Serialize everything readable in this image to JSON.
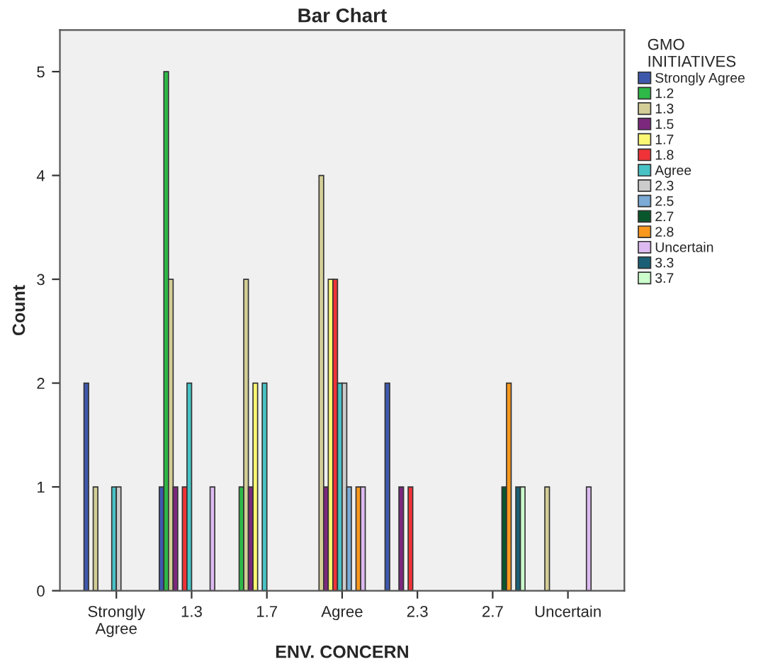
{
  "chart_data": {
    "type": "bar",
    "title": "Bar Chart",
    "xlabel": "ENV. CONCERN",
    "ylabel": "Count",
    "legend_title": "GMO INITIATIVES",
    "categories": [
      "Strongly Agree",
      "1.3",
      "1.7",
      "Agree",
      "2.3",
      "2.7",
      "Uncertain"
    ],
    "series": [
      {
        "name": "Strongly Agree",
        "color": "#3e58ac",
        "values": [
          2,
          1,
          null,
          null,
          2,
          null,
          null
        ]
      },
      {
        "name": "1.2",
        "color": "#2eb848",
        "values": [
          null,
          5,
          1,
          null,
          null,
          null,
          null
        ]
      },
      {
        "name": "1.3",
        "color": "#d3ce97",
        "values": [
          1,
          3,
          3,
          4,
          null,
          null,
          1
        ]
      },
      {
        "name": "1.5",
        "color": "#7c287d",
        "values": [
          null,
          1,
          1,
          1,
          1,
          null,
          null
        ]
      },
      {
        "name": "1.7",
        "color": "#fbf873",
        "values": [
          null,
          null,
          2,
          3,
          null,
          null,
          null
        ]
      },
      {
        "name": "1.8",
        "color": "#ef3338",
        "values": [
          null,
          1,
          null,
          3,
          1,
          null,
          null
        ]
      },
      {
        "name": "Agree",
        "color": "#48c2c5",
        "values": [
          1,
          2,
          2,
          2,
          null,
          null,
          null
        ]
      },
      {
        "name": "2.3",
        "color": "#cccccc",
        "values": [
          1,
          null,
          null,
          2,
          null,
          null,
          null
        ]
      },
      {
        "name": "2.5",
        "color": "#7aaad5",
        "values": [
          null,
          null,
          null,
          1,
          null,
          null,
          null
        ]
      },
      {
        "name": "2.7",
        "color": "#0a562c",
        "values": [
          null,
          null,
          null,
          null,
          null,
          1,
          null
        ]
      },
      {
        "name": "2.8",
        "color": "#f8981d",
        "values": [
          null,
          null,
          null,
          1,
          null,
          2,
          null
        ]
      },
      {
        "name": "Uncertain",
        "color": "#ddbaf1",
        "values": [
          null,
          1,
          null,
          1,
          null,
          null,
          1
        ]
      },
      {
        "name": "3.3",
        "color": "#1a5f76",
        "values": [
          null,
          null,
          null,
          null,
          null,
          1,
          null
        ]
      },
      {
        "name": "3.7",
        "color": "#ccffcc",
        "values": [
          null,
          null,
          null,
          null,
          null,
          1,
          null
        ]
      }
    ],
    "ylim": [
      0,
      5.4
    ],
    "yticks": [
      0,
      1,
      2,
      3,
      4,
      5
    ],
    "grid": false,
    "legend": "right"
  }
}
